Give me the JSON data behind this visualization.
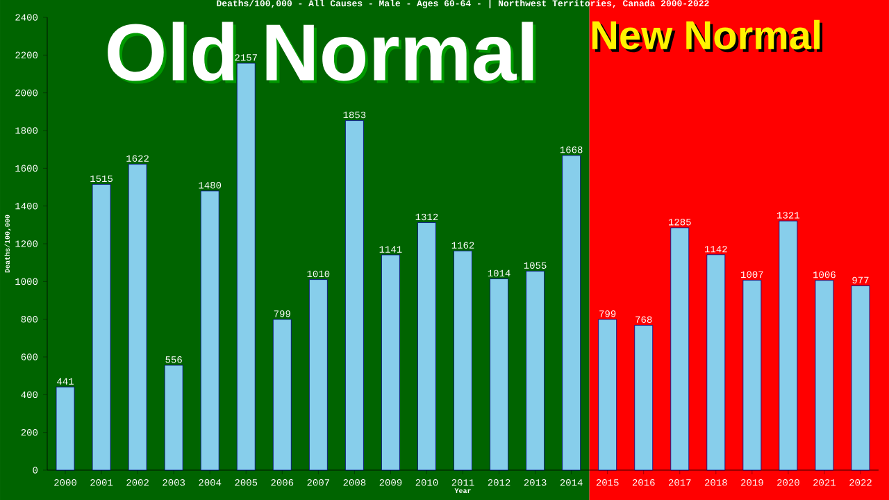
{
  "chart_data": {
    "type": "bar",
    "title": "Deaths/100,000 - All Causes - Male - Ages 60-64 -  | Northwest Territories, Canada 2000-2022",
    "xlabel": "Year",
    "ylabel": "Deaths/100,000",
    "categories": [
      "2000",
      "2001",
      "2002",
      "2003",
      "2004",
      "2005",
      "2006",
      "2007",
      "2008",
      "2009",
      "2010",
      "2011",
      "2012",
      "2013",
      "2014",
      "2015",
      "2016",
      "2017",
      "2018",
      "2019",
      "2020",
      "2021",
      "2022"
    ],
    "values": [
      441,
      1515,
      1622,
      556,
      1480,
      2157,
      799,
      1010,
      1853,
      1141,
      1312,
      1162,
      1014,
      1055,
      1668,
      799,
      768,
      1285,
      1142,
      1007,
      1321,
      1006,
      977
    ],
    "color": "#87ceeb",
    "data_labels": true,
    "grid": false,
    "ylim": [
      0,
      2400
    ],
    "yticks": [
      0,
      200,
      400,
      600,
      800,
      1000,
      1200,
      1400,
      1600,
      1800,
      2000,
      2200,
      2400
    ],
    "bands": [
      {
        "axis": "x",
        "from": "2000",
        "to": "2014",
        "label": "Old Normal",
        "color": "#006400"
      },
      {
        "axis": "x",
        "from": "2015",
        "to": "2022",
        "label": "New Normal",
        "color": "#ff0000"
      }
    ]
  }
}
